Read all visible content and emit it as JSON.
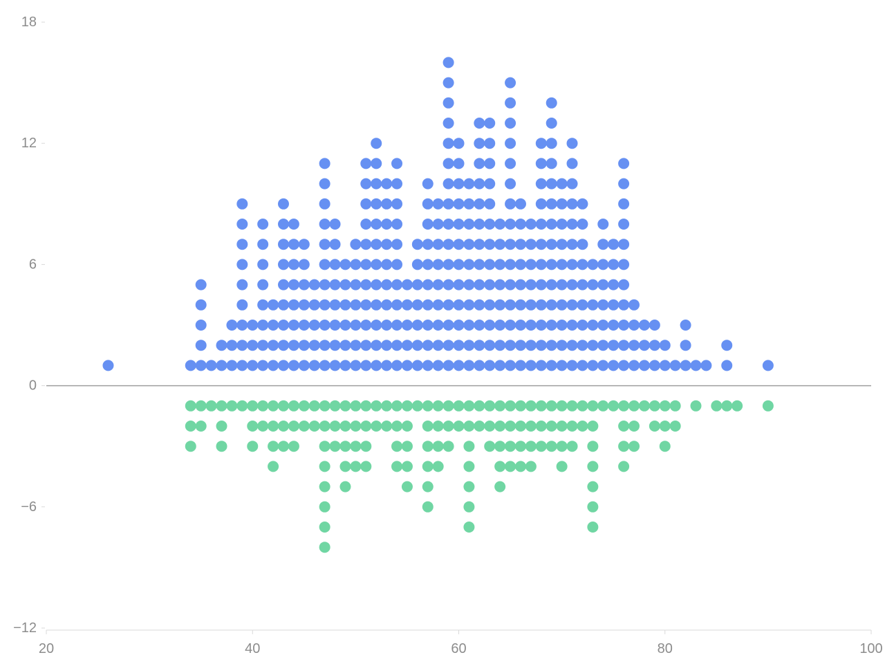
{
  "chart_data": {
    "type": "scatter",
    "title": "",
    "xlabel": "",
    "ylabel": "",
    "xlim": [
      20,
      100
    ],
    "ylim": [
      -12,
      18
    ],
    "x_ticks": [
      "20",
      "40",
      "60",
      "80",
      "100"
    ],
    "y_ticks": [
      "18",
      "12",
      "6",
      "0",
      "−6",
      "−12"
    ],
    "grid": false,
    "legend": "none",
    "colors": {
      "positive": "#6690f2",
      "negative": "#70d6a3",
      "zero_line": "#9e9e9e"
    },
    "stacks": [
      [
        26,
        1,
        0
      ],
      [
        34,
        1,
        3
      ],
      [
        35,
        5,
        2
      ],
      [
        36,
        1,
        1
      ],
      [
        37,
        2,
        3
      ],
      [
        38,
        3,
        1
      ],
      [
        39,
        9,
        1
      ],
      [
        40,
        3,
        3
      ],
      [
        41,
        8,
        2
      ],
      [
        42,
        4,
        4
      ],
      [
        43,
        9,
        3
      ],
      [
        44,
        8,
        3
      ],
      [
        45,
        7,
        2
      ],
      [
        46,
        5,
        2
      ],
      [
        47,
        11,
        8
      ],
      [
        48,
        8,
        3
      ],
      [
        49,
        6,
        5
      ],
      [
        50,
        7,
        4
      ],
      [
        51,
        11,
        4
      ],
      [
        52,
        12,
        2
      ],
      [
        53,
        10,
        2
      ],
      [
        54,
        11,
        4
      ],
      [
        55,
        5,
        5
      ],
      [
        56,
        7,
        1
      ],
      [
        57,
        10,
        6
      ],
      [
        58,
        9,
        4
      ],
      [
        59,
        16,
        3
      ],
      [
        60,
        12,
        2
      ],
      [
        61,
        10,
        7
      ],
      [
        62,
        13,
        2
      ],
      [
        63,
        13,
        3
      ],
      [
        64,
        8,
        5
      ],
      [
        65,
        15,
        4
      ],
      [
        66,
        9,
        4
      ],
      [
        67,
        8,
        4
      ],
      [
        68,
        12,
        3
      ],
      [
        69,
        14,
        3
      ],
      [
        70,
        10,
        4
      ],
      [
        71,
        12,
        3
      ],
      [
        72,
        9,
        2
      ],
      [
        73,
        6,
        7
      ],
      [
        74,
        8,
        1
      ],
      [
        75,
        7,
        1
      ],
      [
        76,
        11,
        4
      ],
      [
        77,
        4,
        3
      ],
      [
        78,
        3,
        1
      ],
      [
        79,
        3,
        2
      ],
      [
        80,
        2,
        3
      ],
      [
        81,
        1,
        2
      ],
      [
        82,
        3,
        0
      ],
      [
        83,
        1,
        1
      ],
      [
        84,
        1,
        0
      ],
      [
        85,
        0,
        1
      ],
      [
        86,
        2,
        1
      ],
      [
        87,
        0,
        1
      ],
      [
        90,
        1,
        1
      ]
    ]
  }
}
